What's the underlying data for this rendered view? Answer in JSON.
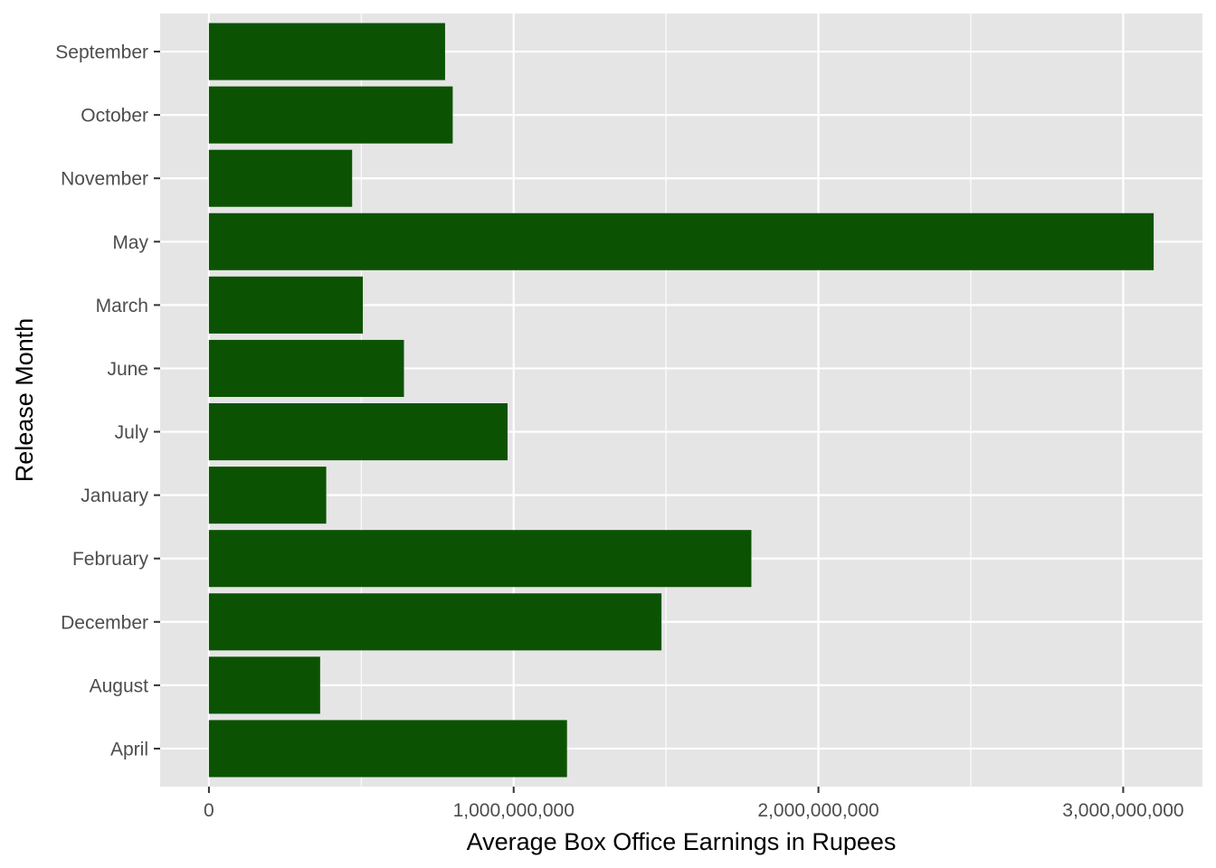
{
  "chart_data": {
    "type": "bar",
    "orientation": "horizontal",
    "title": "",
    "xlabel": "Average Box Office Earnings in Rupees",
    "ylabel": "Release Month",
    "categories": [
      "April",
      "August",
      "December",
      "February",
      "January",
      "July",
      "June",
      "March",
      "May",
      "November",
      "October",
      "September"
    ],
    "values": [
      1175000000,
      365000000,
      1485000000,
      1780000000,
      385000000,
      980000000,
      640000000,
      505000000,
      3100000000,
      470000000,
      800000000,
      775000000
    ],
    "xlim": [
      -160000000,
      3260000000
    ],
    "x_ticks": [
      0,
      1000000000,
      2000000000,
      3000000000
    ],
    "x_tick_labels": [
      "0",
      "1,000,000,000",
      "2,000,000,000",
      "3,000,000,000"
    ],
    "grid": true,
    "legend": "none",
    "colors": {
      "bar": "#0b5302",
      "panel": "#e5e5e5",
      "grid": "#ffffff",
      "tick_text": "#4d4d4d",
      "tick_mark": "#333333"
    }
  }
}
